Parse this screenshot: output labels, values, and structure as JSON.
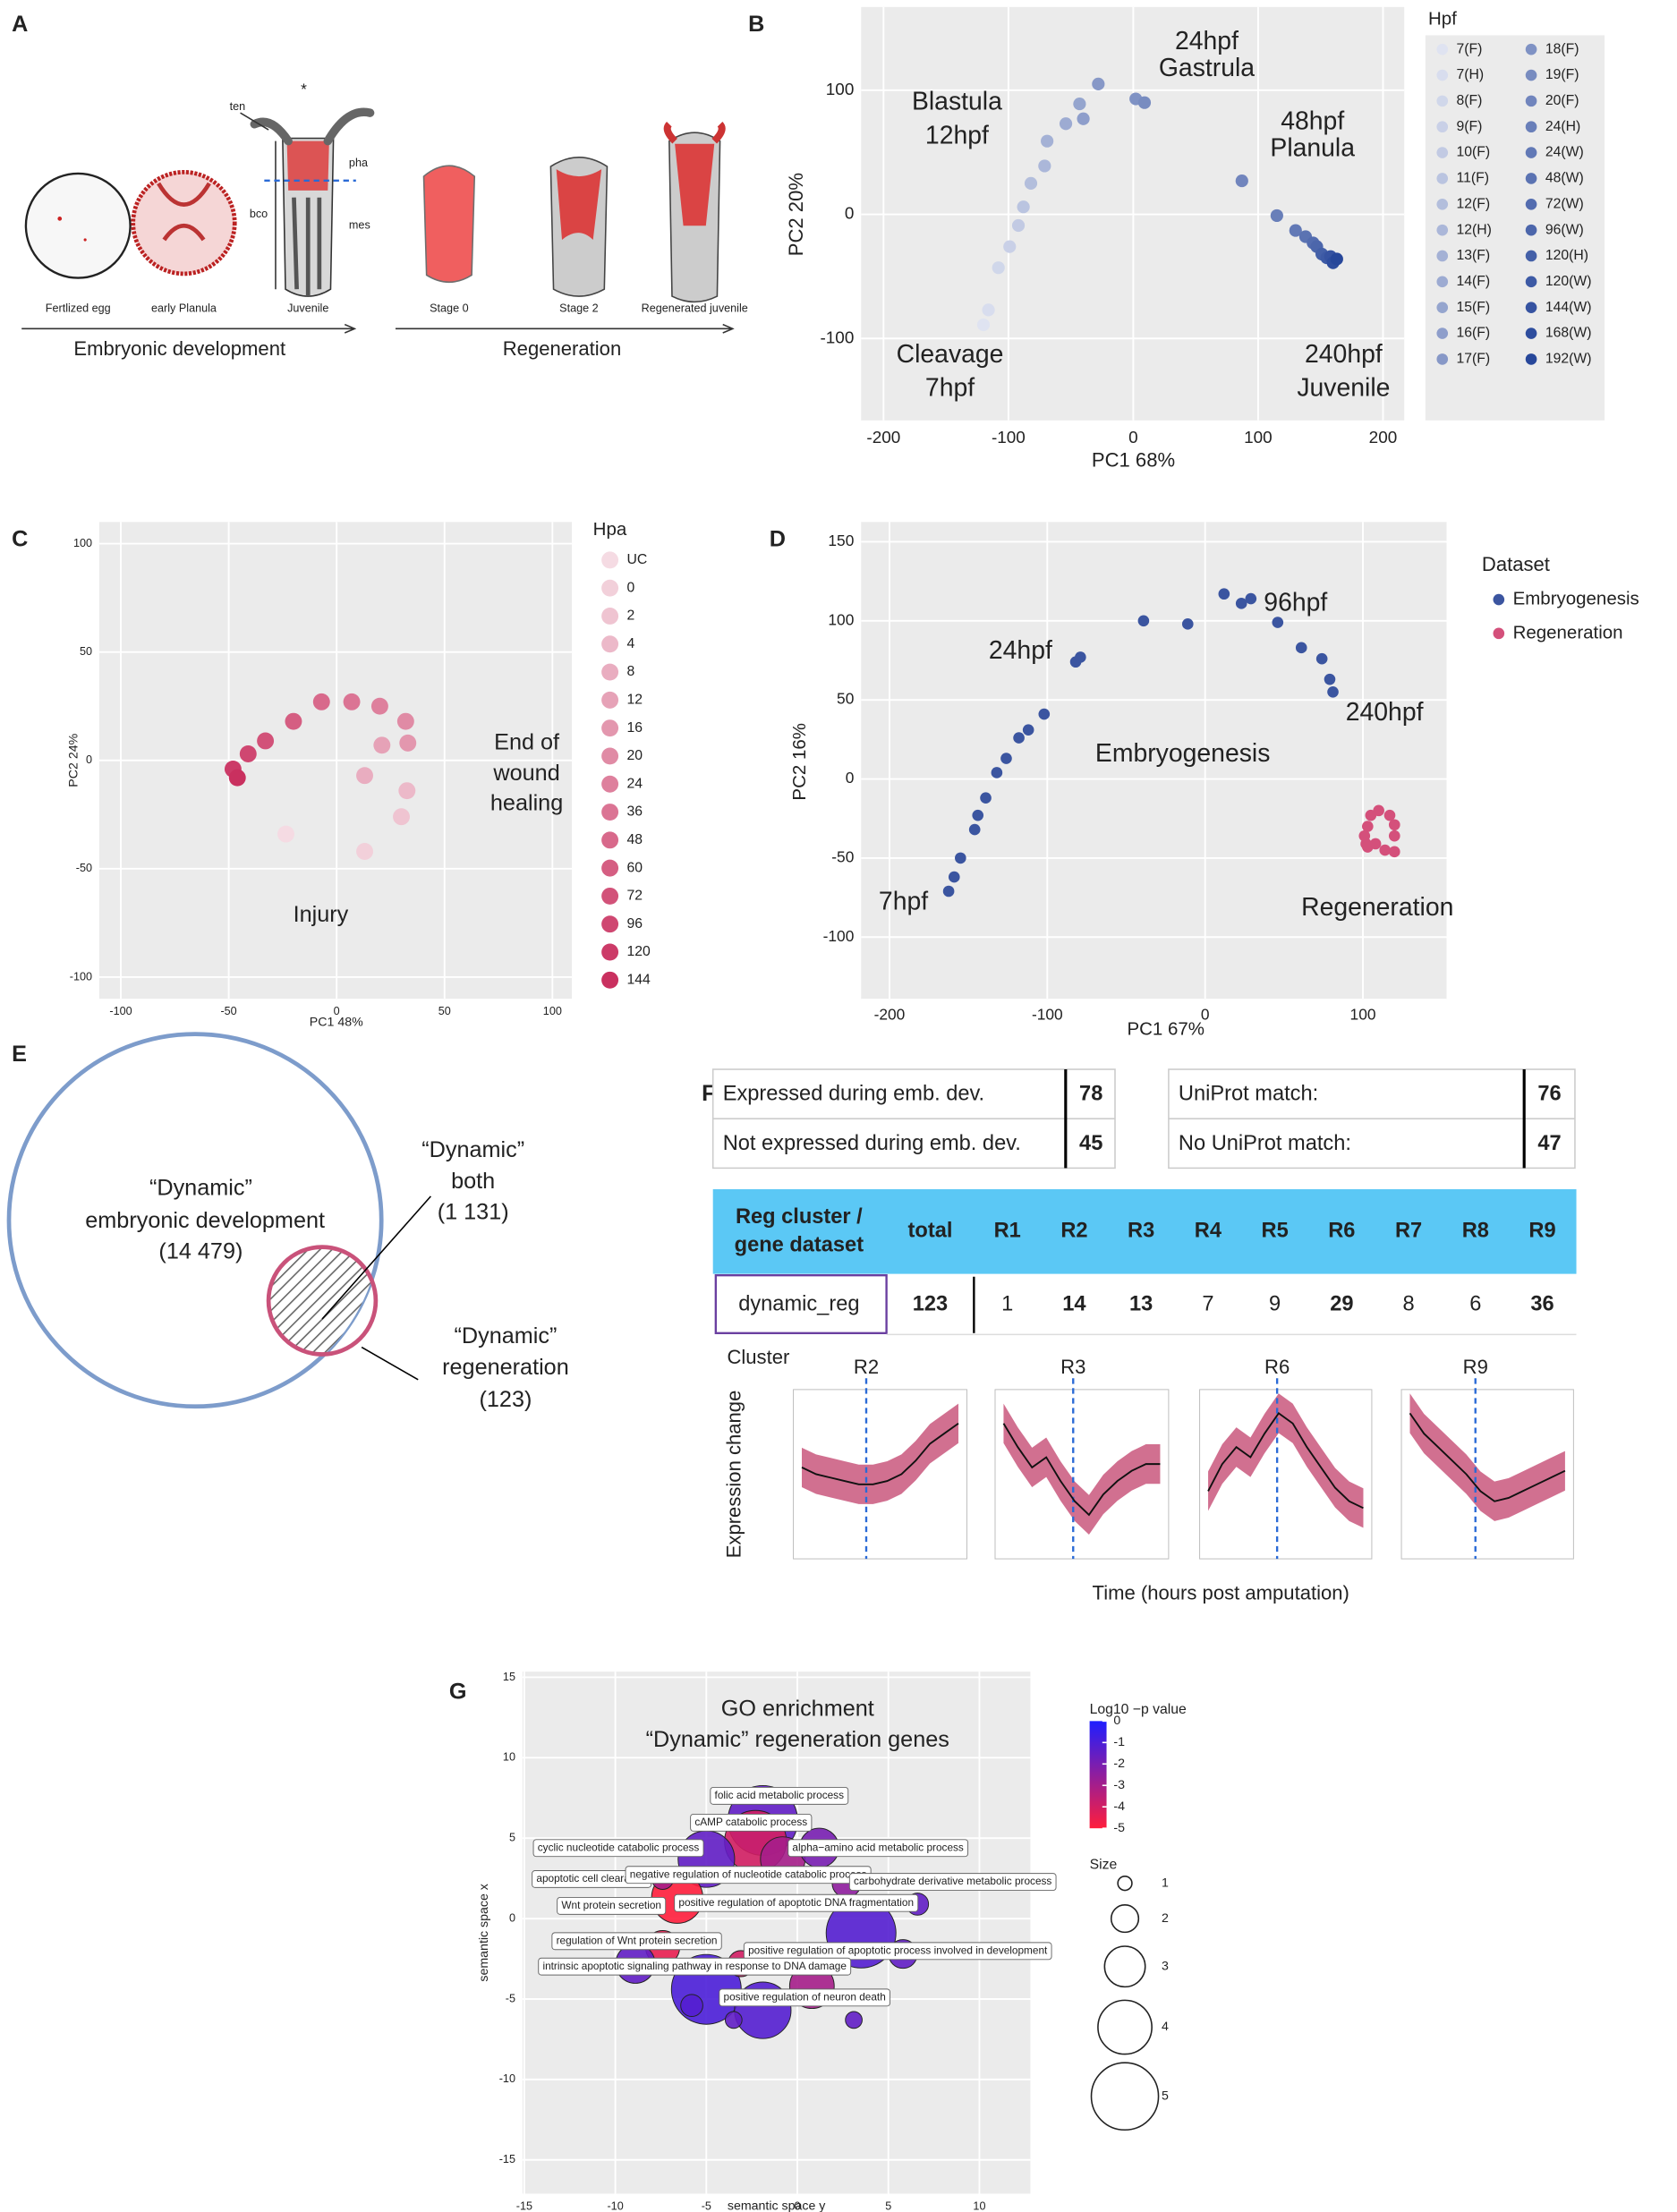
{
  "panels": [
    "A",
    "B",
    "C",
    "D",
    "E",
    "F",
    "G"
  ],
  "panel_a": {
    "labels": [
      "ten",
      "*",
      "pha",
      "bco",
      "mes"
    ],
    "stages": [
      "Fertlized egg",
      "early Planula",
      "Juvenile",
      "Stage 0",
      "Stage 2",
      "Regenerated juvenile"
    ],
    "arrows": [
      "Embryonic development",
      "Regeneration"
    ]
  },
  "panel_e": {
    "labels": [
      [
        "“Dynamic”",
        "embryonic development",
        "(14 479)"
      ],
      [
        "“Dynamic”",
        "both",
        "(1 131)"
      ],
      [
        "“Dynamic”",
        "regeneration",
        "(123)"
      ]
    ]
  },
  "panel_f": {
    "table1": [
      [
        "Expressed during emb. dev.",
        78
      ],
      [
        "Not expressed during emb. dev.",
        45
      ]
    ],
    "table2": [
      [
        "UniProt match:",
        76
      ],
      [
        "No UniProt match:",
        47
      ]
    ],
    "table3": {
      "header_first": [
        "Reg cluster /",
        "gene dataset"
      ],
      "header": [
        "total",
        "R1",
        "R2",
        "R3",
        "R4",
        "R5",
        "R6",
        "R7",
        "R8",
        "R9"
      ],
      "row_first": "dynamic_reg",
      "row": [
        123,
        1,
        14,
        13,
        7,
        9,
        29,
        8,
        6,
        36
      ]
    },
    "cluster_label": "Cluster",
    "y_label": "Expression change",
    "x_label": "Time (hours post amputation)"
  },
  "chart_data": [
    {
      "type": "scatter",
      "x_label": "PC1 68%",
      "y_label": "PC2 20%",
      "xlim": [
        -218,
        217
      ],
      "xticks": [
        -200,
        -100,
        0,
        100,
        200
      ],
      "ylim": [
        -166,
        167
      ],
      "yticks": [
        -100,
        0,
        100
      ],
      "grid": true,
      "legend_title": "Hpf",
      "annotations": [
        "24hpf",
        "Gastrula",
        "Blastula",
        "12hpf",
        "48hpf",
        "Planula",
        "Cleavage",
        "7hpf",
        "240hpf",
        "Juvenile"
      ],
      "series": [
        {
          "name": "7(F)",
          "color": "#dfe3f1",
          "x": [
            -120
          ],
          "values": [
            -89
          ]
        },
        {
          "name": "7(H)",
          "color": "#d8ddee",
          "x": [
            -116
          ],
          "values": [
            -77
          ]
        },
        {
          "name": "8(F)",
          "color": "#d0d7ea",
          "x": [
            -108
          ],
          "values": [
            -43
          ]
        },
        {
          "name": "9(F)",
          "color": "#c9d0e7",
          "x": [
            -99
          ],
          "values": [
            -26
          ]
        },
        {
          "name": "10(F)",
          "color": "#c2cae3",
          "x": [
            -92
          ],
          "values": [
            -9
          ]
        },
        {
          "name": "11(F)",
          "color": "#bac4e0",
          "x": [
            -88
          ],
          "values": [
            6
          ]
        },
        {
          "name": "12(F)",
          "color": "#b3bedc",
          "x": [
            -82
          ],
          "values": [
            25
          ]
        },
        {
          "name": "12(H)",
          "color": "#abb7d9",
          "x": [
            -71
          ],
          "values": [
            39
          ]
        },
        {
          "name": "13(F)",
          "color": "#a4b1d5",
          "x": [
            -69
          ],
          "values": [
            59
          ]
        },
        {
          "name": "14(F)",
          "color": "#9dabd2",
          "x": [
            -54
          ],
          "values": [
            73
          ]
        },
        {
          "name": "15(F)",
          "color": "#95a5ce",
          "x": [
            -43
          ],
          "values": [
            89
          ]
        },
        {
          "name": "16(F)",
          "color": "#8e9ecb",
          "x": [
            -40
          ],
          "values": [
            77
          ]
        },
        {
          "name": "17(F)",
          "color": "#8798c7",
          "x": [
            -28
          ],
          "values": [
            105
          ]
        },
        {
          "name": "18(F)",
          "color": "#7f92c4",
          "x": [
            2
          ],
          "values": [
            93
          ]
        },
        {
          "name": "19(F)",
          "color": "#788cc0",
          "x": [
            9
          ],
          "values": [
            90
          ]
        },
        {
          "name": "20(F)",
          "color": "#7185bd",
          "x": [
            87
          ],
          "values": [
            27
          ]
        },
        {
          "name": "24(H)",
          "color": "#697fb9",
          "x": [
            115
          ],
          "values": [
            -1
          ]
        },
        {
          "name": "24(W)",
          "color": "#6279b6",
          "x": [
            130
          ],
          "values": [
            -13
          ]
        },
        {
          "name": "48(W)",
          "color": "#5b73b2",
          "x": [
            138
          ],
          "values": [
            -18
          ]
        },
        {
          "name": "72(W)",
          "color": "#536caf",
          "x": [
            144
          ],
          "values": [
            -23
          ]
        },
        {
          "name": "96(W)",
          "color": "#4c66ab",
          "x": [
            147
          ],
          "values": [
            -26
          ]
        },
        {
          "name": "120(H)",
          "color": "#4460a8",
          "x": [
            151
          ],
          "values": [
            -32
          ]
        },
        {
          "name": "120(W)",
          "color": "#3d5aa5",
          "x": [
            155
          ],
          "values": [
            -35
          ]
        },
        {
          "name": "144(W)",
          "color": "#3653a1",
          "x": [
            158
          ],
          "values": [
            -34
          ]
        },
        {
          "name": "168(W)",
          "color": "#2e4d9e",
          "x": [
            160
          ],
          "values": [
            -39
          ]
        },
        {
          "name": "192(W)",
          "color": "#27479a",
          "x": [
            163
          ],
          "values": [
            -36
          ]
        }
      ]
    },
    {
      "type": "scatter",
      "x_label": "PC1 48%",
      "y_label": "PC2 24%",
      "xlim": [
        -110,
        109
      ],
      "xticks": [
        -100,
        -50,
        0,
        50,
        100
      ],
      "ylim": [
        -110,
        110
      ],
      "yticks": [
        -100,
        -50,
        0,
        50,
        100
      ],
      "grid": true,
      "legend_title": "Hpa",
      "annotations": [
        "End of",
        "wound",
        "healing",
        "Injury"
      ],
      "series": [
        {
          "name": "UC",
          "color": "#f5dbe3",
          "x": [
            -23.5
          ],
          "values": [
            -34
          ]
        },
        {
          "name": "0",
          "color": "#f2d0da",
          "x": [
            13
          ],
          "values": [
            -42
          ]
        },
        {
          "name": "2",
          "color": "#efc4d1",
          "x": [
            30
          ],
          "values": [
            -26
          ]
        },
        {
          "name": "4",
          "color": "#ecb9c9",
          "x": [
            32.6
          ],
          "values": [
            -14
          ]
        },
        {
          "name": "8",
          "color": "#e9adc0",
          "x": [
            13
          ],
          "values": [
            -7
          ]
        },
        {
          "name": "12",
          "color": "#e6a2b7",
          "x": [
            21
          ],
          "values": [
            7
          ]
        },
        {
          "name": "16",
          "color": "#e397ae",
          "x": [
            33
          ],
          "values": [
            8
          ]
        },
        {
          "name": "20",
          "color": "#e08ba5",
          "x": [
            32
          ],
          "values": [
            18
          ]
        },
        {
          "name": "24",
          "color": "#de809d",
          "x": [
            20
          ],
          "values": [
            25
          ]
        },
        {
          "name": "36",
          "color": "#db7494",
          "x": [
            7
          ],
          "values": [
            27
          ]
        },
        {
          "name": "48",
          "color": "#d8698b",
          "x": [
            -7
          ],
          "values": [
            27
          ]
        },
        {
          "name": "60",
          "color": "#d55e82",
          "x": [
            -20
          ],
          "values": [
            18
          ]
        },
        {
          "name": "72",
          "color": "#d25279",
          "x": [
            -33
          ],
          "values": [
            9
          ]
        },
        {
          "name": "96",
          "color": "#cf4771",
          "x": [
            -41
          ],
          "values": [
            3
          ]
        },
        {
          "name": "120",
          "color": "#cc3b68",
          "x": [
            -48
          ],
          "values": [
            -4
          ]
        },
        {
          "name": "144",
          "color": "#c9305f",
          "x": [
            -46
          ],
          "values": [
            -8
          ]
        }
      ]
    },
    {
      "type": "scatter",
      "x_label": "PC1 67%",
      "y_label": "PC2 16%",
      "xlim": [
        -218,
        153
      ],
      "xticks": [
        -200,
        -100,
        0,
        100
      ],
      "ylim": [
        -139,
        162.5
      ],
      "yticks": [
        -100,
        -50,
        0,
        50,
        100,
        150
      ],
      "grid": true,
      "legend_title": "Dataset",
      "annotations": [
        "96hpf",
        "24hpf",
        "240hpf",
        "7hpf",
        "Embryogenesis",
        "Regeneration"
      ],
      "series": [
        {
          "name": "Embryogenesis",
          "color": "#3b55a0",
          "x": [
            -162.5,
            -159,
            -155,
            -146,
            -144,
            -139,
            -132,
            -126,
            -118,
            -112,
            -102,
            -82,
            -79,
            -39,
            -11,
            12,
            23,
            29,
            46,
            61,
            74,
            79,
            81
          ],
          "values": [
            -71,
            -62,
            -50,
            -32,
            -23,
            -12,
            4,
            13,
            26,
            31,
            41,
            74,
            77,
            100,
            98,
            117,
            111,
            114,
            99,
            83,
            76,
            63,
            55
          ]
        },
        {
          "name": "Regeneration",
          "color": "#d4507b",
          "x": [
            101,
            103,
            105,
            110,
            117,
            120,
            120,
            114,
            120,
            108,
            103,
            102
          ],
          "values": [
            -36,
            -30,
            -23,
            -20,
            -23,
            -29,
            -36,
            -45,
            -46,
            -41,
            -43,
            -41
          ]
        }
      ]
    },
    {
      "type": "line",
      "title": "R2",
      "ylim": [
        -2.5,
        2.5
      ],
      "values": [
        0.2,
        0,
        -0.1,
        -0.2,
        -0.3,
        -0.3,
        -0.2,
        0,
        0.4,
        0.9,
        1.2,
        1.5
      ]
    },
    {
      "type": "line",
      "title": "R3",
      "ylim": [
        -2.5,
        2.5
      ],
      "values": [
        1.5,
        0.8,
        0.2,
        0.5,
        -0.2,
        -0.8,
        -1.2,
        -0.6,
        -0.2,
        0.1,
        0.3,
        0.3
      ]
    },
    {
      "type": "line",
      "title": "R6",
      "ylim": [
        -2.5,
        2.5
      ],
      "values": [
        -0.5,
        0.3,
        0.8,
        0.5,
        1.2,
        1.8,
        1.5,
        0.8,
        0.2,
        -0.4,
        -0.8,
        -1.0
      ]
    },
    {
      "type": "line",
      "title": "R9",
      "ylim": [
        -2.5,
        2.5
      ],
      "values": [
        1.8,
        1.2,
        0.8,
        0.4,
        0.0,
        -0.5,
        -0.8,
        -0.7,
        -0.5,
        -0.3,
        -0.1,
        0.1
      ]
    },
    {
      "type": "bubble",
      "title": [
        "GO enrichment",
        "“Dynamic” regeneration genes"
      ],
      "x_label": "semantic space y",
      "y_label": "semantic space x",
      "xlim": [
        -15.1,
        12.8
      ],
      "xticks": [
        -15,
        -10,
        -5,
        0,
        5,
        10
      ],
      "ylim": [
        -17.1,
        15.35
      ],
      "yticks": [
        -15,
        -10,
        -5,
        0,
        5,
        10,
        15
      ],
      "grid": true,
      "x": [
        -1.9,
        -2.3,
        -0.8,
        -5,
        -6.6,
        -7.4,
        1.2,
        3.5,
        -5,
        -1.9,
        0.8,
        5.8,
        2.7,
        -3.1,
        -8.9,
        6.6,
        -7.4,
        3.1,
        -3.5,
        -5.8
      ],
      "values": [
        6.1,
        4.8,
        3.7,
        3.7,
        1.3,
        -1.8,
        4.4,
        -0.9,
        -4.4,
        -5.7,
        -4.2,
        -2.2,
        2.2,
        -2.8,
        -2.8,
        0.9,
        2.5,
        -6.3,
        -6.3,
        -5.4
      ],
      "sizes": [
        5.2,
        4.6,
        3.3,
        4.2,
        3.8,
        2.5,
        2.9,
        5.2,
        5.2,
        4.2,
        3.3,
        2.1,
        2.1,
        1.9,
        2.9,
        1.6,
        1.6,
        1.2,
        1.2,
        1.6
      ],
      "log10p": [
        -1.5,
        -4,
        -3,
        -1.5,
        -5,
        -4.5,
        -2,
        -1.2,
        -1.0,
        -1.2,
        -3,
        -1.5,
        -2.5,
        -4,
        -1.5,
        -1.5,
        -3,
        -1.5,
        -1.5,
        -1.2
      ],
      "colorbar_title": "Log10 −p value",
      "clim": [
        -5,
        0
      ],
      "cticks": [
        0,
        -1,
        -2,
        -3,
        -4,
        -5
      ],
      "size_title": "Size",
      "size_ticks": [
        1,
        2,
        3,
        4,
        5
      ],
      "annotations": [
        "folic acid metabolic process",
        "cAMP catabolic process",
        "cyclic nucleotide catabolic process",
        "alpha−amino acid metabolic process",
        "apoptotic cell clearance",
        "negative regulation of nucleotide catabolic process",
        "carbohydrate derivative metabolic process",
        "positive regulation of apoptotic DNA fragmentation",
        "Wnt protein secretion",
        "regulation of Wnt protein secretion",
        "positive regulation of apoptotic process involved in development",
        "intrinsic apoptotic signaling pathway in response to DNA damage",
        "positive regulation of neuron death"
      ]
    }
  ]
}
